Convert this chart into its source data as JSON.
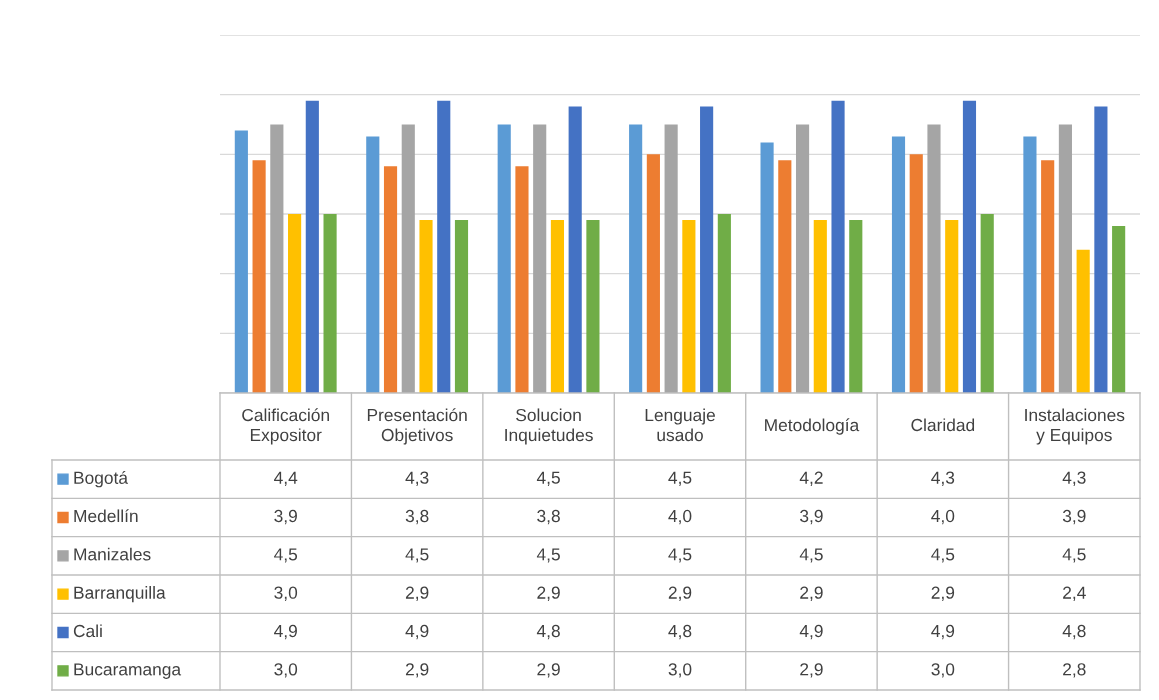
{
  "chart_data": {
    "type": "bar",
    "categories": [
      "Calificación\nExpositor",
      "Presentación\nObjetivos",
      "Solucion\nInquietudes",
      "Lenguaje\nusado",
      "Metodología",
      "Claridad",
      "Instalaciones\ny Equipos"
    ],
    "series": [
      {
        "name": "Bogotá",
        "color": "#5b9bd5",
        "values": [
          4.4,
          4.3,
          4.5,
          4.5,
          4.2,
          4.3,
          4.3
        ],
        "value_labels": [
          "4,4",
          "4,3",
          "4,5",
          "4,5",
          "4,2",
          "4,3",
          "4,3"
        ]
      },
      {
        "name": "Medellín",
        "color": "#ed7d31",
        "values": [
          3.9,
          3.8,
          3.8,
          4.0,
          3.9,
          4.0,
          3.9
        ],
        "value_labels": [
          "3,9",
          "3,8",
          "3,8",
          "4,0",
          "3,9",
          "4,0",
          "3,9"
        ]
      },
      {
        "name": "Manizales",
        "color": "#a5a5a5",
        "values": [
          4.5,
          4.5,
          4.5,
          4.5,
          4.5,
          4.5,
          4.5
        ],
        "value_labels": [
          "4,5",
          "4,5",
          "4,5",
          "4,5",
          "4,5",
          "4,5",
          "4,5"
        ]
      },
      {
        "name": "Barranquilla",
        "color": "#ffc000",
        "values": [
          3.0,
          2.9,
          2.9,
          2.9,
          2.9,
          2.9,
          2.4
        ],
        "value_labels": [
          "3,0",
          "2,9",
          "2,9",
          "2,9",
          "2,9",
          "2,9",
          "2,4"
        ]
      },
      {
        "name": "Cali",
        "color": "#4472c4",
        "values": [
          4.9,
          4.9,
          4.8,
          4.8,
          4.9,
          4.9,
          4.8
        ],
        "value_labels": [
          "4,9",
          "4,9",
          "4,8",
          "4,8",
          "4,9",
          "4,9",
          "4,8"
        ]
      },
      {
        "name": "Bucaramanga",
        "color": "#70ad47",
        "values": [
          3.0,
          2.9,
          2.9,
          3.0,
          2.9,
          3.0,
          2.8
        ],
        "value_labels": [
          "3,0",
          "2,9",
          "2,9",
          "3,0",
          "2,9",
          "3,0",
          "2,8"
        ]
      }
    ],
    "ylim": [
      0,
      6
    ],
    "yticks": [
      {
        "value": 0,
        "label": null
      },
      {
        "value": 1,
        "label": null
      },
      {
        "value": 2,
        "label": null
      },
      {
        "value": 3,
        "label": null
      },
      {
        "value": 4,
        "label": null
      },
      {
        "value": 5,
        "label": null
      },
      {
        "value": 6,
        "label": null
      }
    ],
    "grid": "y",
    "legend": "bottom"
  }
}
